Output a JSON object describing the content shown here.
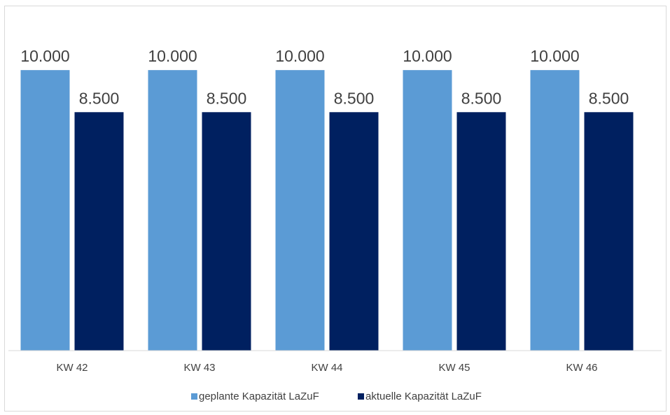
{
  "chart_data": {
    "type": "bar",
    "categories": [
      "KW 42",
      "KW 43",
      "KW 44",
      "KW 45",
      "KW 46"
    ],
    "series": [
      {
        "name": "geplante Kapazität LaZuF",
        "values": [
          10000,
          10000,
          10000,
          10000,
          10000
        ],
        "labels": [
          "10.000",
          "10.000",
          "10.000",
          "10.000",
          "10.000"
        ],
        "color": "#5b9bd5"
      },
      {
        "name": "aktuelle Kapazität LaZuF",
        "values": [
          8500,
          8500,
          8500,
          8500,
          8500
        ],
        "labels": [
          "8.500",
          "8.500",
          "8.500",
          "8.500",
          "8.500"
        ],
        "color": "#002060"
      }
    ],
    "ylim": [
      0,
      11800
    ],
    "grid": false,
    "legend_position": "bottom"
  }
}
